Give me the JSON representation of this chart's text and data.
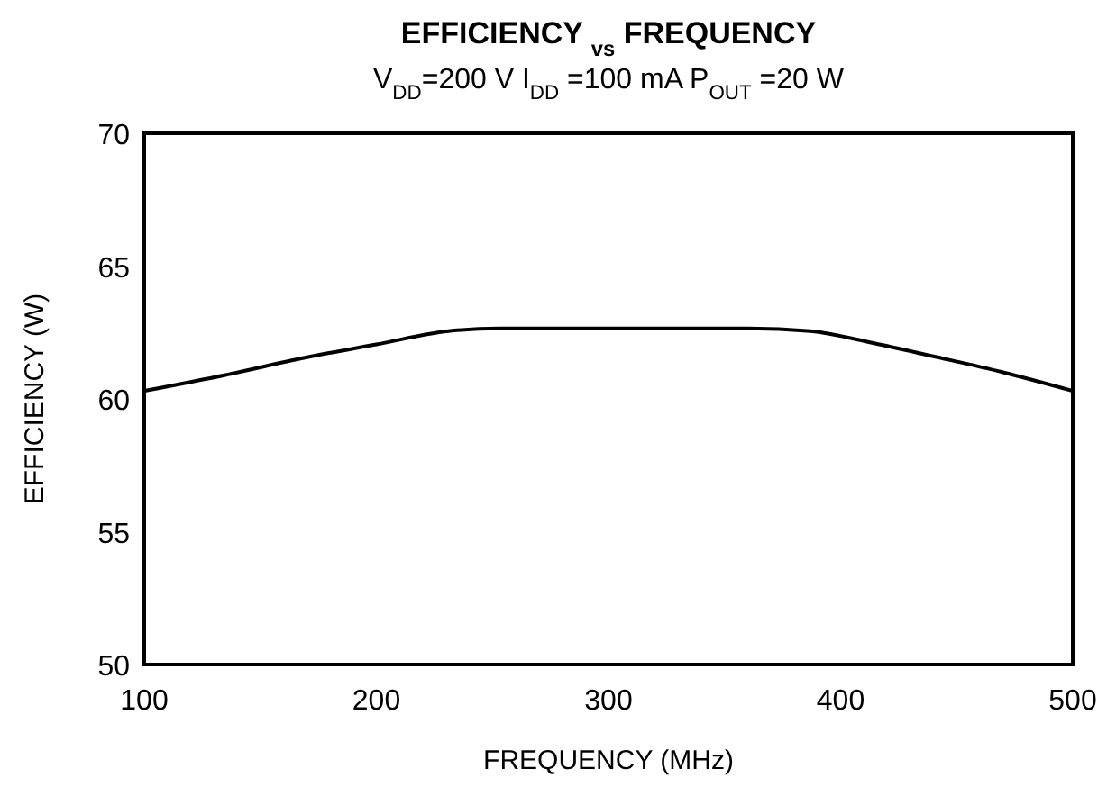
{
  "chart_data": {
    "type": "line",
    "title": "EFFICIENCY $_{vs}$ FREQUENCY",
    "subtitle": "V$_{DD}$=200 V I$_{DD}$ =100 mA  P$_{OUT}$ =20 W",
    "xlabel": "FREQUENCY (MHz)",
    "ylabel": "EFFICIENCY (W)",
    "x": [
      100,
      135,
      172,
      200,
      231,
      253,
      300,
      360,
      387,
      414,
      440,
      470,
      500
    ],
    "series": [
      {
        "color": "#000000",
        "values": [
          60.3,
          60.9,
          61.6,
          62.05,
          62.55,
          62.65,
          62.65,
          62.65,
          62.55,
          62.1,
          61.6,
          61.0,
          60.3
        ]
      }
    ],
    "xlim": [
      100,
      500
    ],
    "xticks": [
      100,
      200,
      300,
      400,
      500
    ],
    "ylim": [
      50,
      70
    ],
    "yticks": [
      50,
      55,
      60,
      65,
      70
    ],
    "marker": "none",
    "line_style": "solid"
  }
}
